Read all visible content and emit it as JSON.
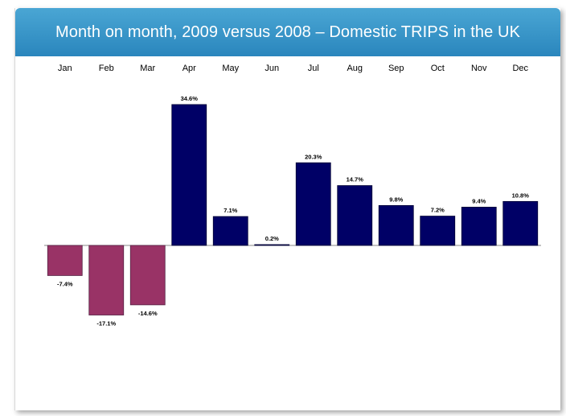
{
  "title": "Month on month, 2009 versus 2008 – Domestic TRIPS in the UK",
  "colors": {
    "positive": "#000066",
    "negative": "#993366",
    "title_bar": "#2f8cc2",
    "title_text": "#ffffff"
  },
  "chart_data": {
    "type": "bar",
    "title": "Month on month, 2009 versus 2008 – Domestic TRIPS in the UK",
    "categories": [
      "Jan",
      "Feb",
      "Mar",
      "Apr",
      "May",
      "Jun",
      "Jul",
      "Aug",
      "Sep",
      "Oct",
      "Nov",
      "Dec"
    ],
    "values": [
      -7.4,
      -17.1,
      -14.6,
      34.6,
      7.1,
      0.2,
      20.3,
      14.7,
      9.8,
      7.2,
      9.4,
      10.8
    ],
    "value_labels": [
      "-7.4%",
      "-17.1%",
      "-14.6%",
      "34.6%",
      "7.1%",
      "0.2%",
      "20.3%",
      "14.7%",
      "9.8%",
      "7.2%",
      "9.4%",
      "10.8%"
    ],
    "unit": "%",
    "xlabel": "",
    "ylabel": "",
    "category_axis_position": "top",
    "grid": false,
    "legend": "none"
  }
}
